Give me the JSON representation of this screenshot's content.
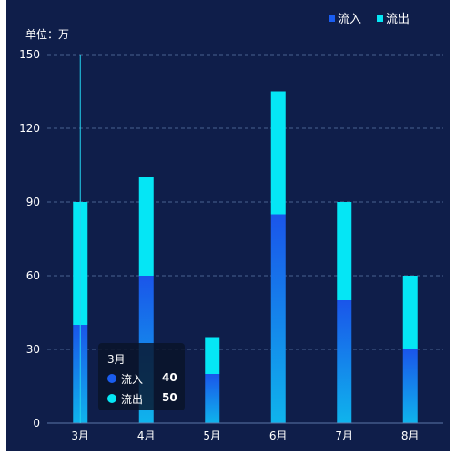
{
  "unit_label": "单位：万",
  "legend": [
    {
      "name": "流入",
      "color": "#1a5df0"
    },
    {
      "name": "流出",
      "color": "#05e6f5"
    }
  ],
  "tooltip": {
    "title": "3月",
    "rows": [
      {
        "name": "流入",
        "value": "40",
        "color": "#1a5df0"
      },
      {
        "name": "流出",
        "value": "50",
        "color": "#05e6f5"
      }
    ]
  },
  "chart_data": {
    "type": "bar",
    "stacked": true,
    "categories": [
      "3月",
      "4月",
      "5月",
      "6月",
      "7月",
      "8月"
    ],
    "series": [
      {
        "name": "流入",
        "values": [
          40,
          60,
          20,
          85,
          50,
          30
        ],
        "color": "#1a5df0"
      },
      {
        "name": "流出",
        "values": [
          50,
          40,
          15,
          50,
          40,
          30
        ],
        "color": "#05e6f5"
      }
    ],
    "ylim": [
      0,
      150
    ],
    "yticks": [
      0,
      30,
      60,
      90,
      120,
      150
    ],
    "grid": true,
    "legend_position": "top-right",
    "highlighted_category": "3月"
  }
}
